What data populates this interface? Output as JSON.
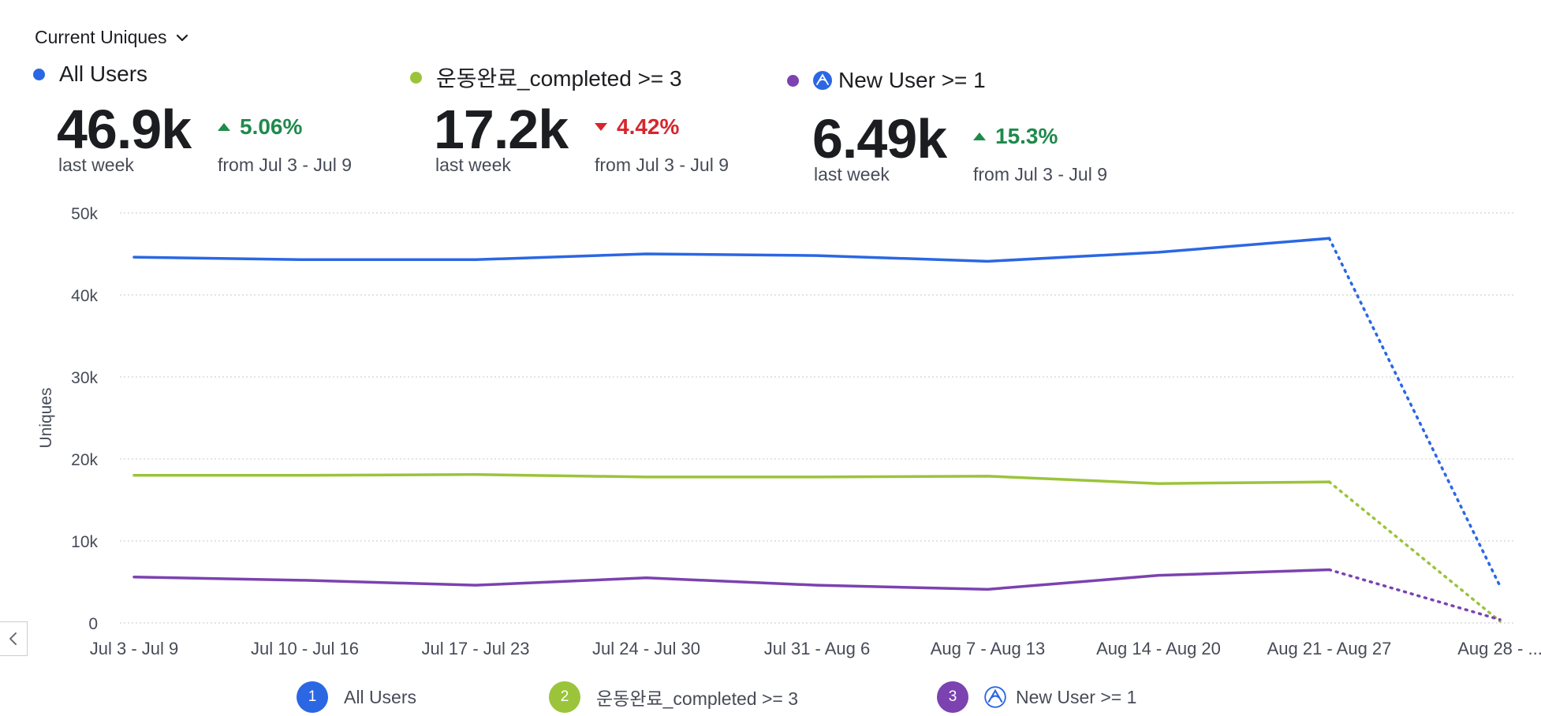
{
  "header": {
    "metric_label": "Current Uniques"
  },
  "kpis": [
    {
      "label": "All Users",
      "color": "#2b67e3",
      "value": "46.9k",
      "period": "last week",
      "change": "5.06%",
      "direction": "up",
      "compare": "from Jul 3 - Jul 9"
    },
    {
      "label": "운동완료_completed >= 3",
      "color": "#9bc43b",
      "value": "17.2k",
      "period": "last week",
      "change": "4.42%",
      "direction": "down",
      "compare": "from Jul 3 - Jul 9"
    },
    {
      "label": "New User >= 1",
      "color": "#7b42b0",
      "icon": "amplitude-icon",
      "value": "6.49k",
      "period": "last week",
      "change": "15.3%",
      "direction": "up",
      "compare": "from Jul 3 - Jul 9"
    }
  ],
  "chart_data": {
    "type": "line",
    "ylabel": "Uniques",
    "ylim": [
      0,
      50000
    ],
    "yticks": [
      0,
      10000,
      20000,
      30000,
      40000,
      50000
    ],
    "ytick_labels": [
      "0",
      "10k",
      "20k",
      "30k",
      "40k",
      "50k"
    ],
    "categories": [
      "Jul 3 - Jul 9",
      "Jul 10 - Jul 16",
      "Jul 17 - Jul 23",
      "Jul 24 - Jul 30",
      "Jul 31 - Aug 6",
      "Aug 7 - Aug 13",
      "Aug 14 - Aug 20",
      "Aug 21 - Aug 27",
      "Aug 28 - ..."
    ],
    "incomplete_from_index": 7,
    "grid": true,
    "series": [
      {
        "name": "All Users",
        "color": "#2b67e3",
        "values": [
          44600,
          44300,
          44300,
          45000,
          44800,
          44100,
          45200,
          46900,
          4500
        ]
      },
      {
        "name": "운동완료_completed >= 3",
        "color": "#9bc43b",
        "values": [
          18000,
          18000,
          18100,
          17800,
          17800,
          17900,
          17000,
          17200,
          200
        ]
      },
      {
        "name": "New User >= 1",
        "color": "#7b42b0",
        "values": [
          5600,
          5200,
          4600,
          5500,
          4600,
          4100,
          5800,
          6490,
          400
        ]
      }
    ]
  },
  "legend": [
    {
      "number": "1",
      "label": "All Users",
      "color": "#2b67e3"
    },
    {
      "number": "2",
      "label": "운동완료_completed >= 3",
      "color": "#9bc43b"
    },
    {
      "number": "3",
      "label": "New User >= 1",
      "color": "#7b42b0",
      "icon": "amplitude-icon"
    }
  ]
}
